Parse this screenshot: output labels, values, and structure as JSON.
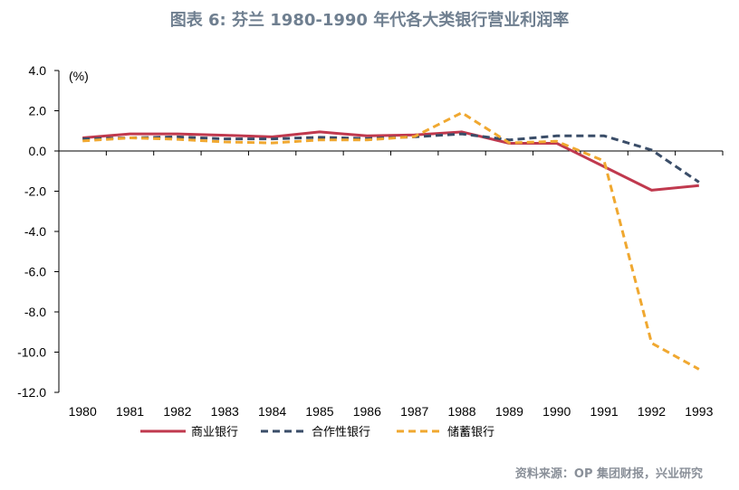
{
  "title": "图表 6: 芬兰 1980-1990 年代各大类银行营业利润率",
  "source": "资料来源：OP 集团财报，兴业研究",
  "chart_data": {
    "type": "line",
    "unit_label": "(%)",
    "categories": [
      "1980",
      "1981",
      "1982",
      "1983",
      "1984",
      "1985",
      "1986",
      "1987",
      "1988",
      "1989",
      "1990",
      "1991",
      "1992",
      "1993"
    ],
    "ylim": [
      -12.0,
      4.0
    ],
    "yticks": [
      "4.0",
      "2.0",
      "0.0",
      "-2.0",
      "-4.0",
      "-6.0",
      "-8.0",
      "-10.0",
      "-12.0"
    ],
    "grid": false,
    "legend_position": "bottom",
    "series": [
      {
        "name": "商业银行",
        "color": "#c0394e",
        "style": "solid",
        "values": [
          0.65,
          0.85,
          0.85,
          0.78,
          0.7,
          0.95,
          0.75,
          0.8,
          0.95,
          0.38,
          0.38,
          -0.78,
          -1.95,
          -1.72
        ]
      },
      {
        "name": "合作性银行",
        "color": "#3a4d68",
        "style": "dashed",
        "values": [
          0.6,
          0.65,
          0.7,
          0.6,
          0.6,
          0.68,
          0.62,
          0.7,
          0.85,
          0.55,
          0.75,
          0.75,
          0.05,
          -1.55
        ]
      },
      {
        "name": "储蓄银行",
        "color": "#f0a830",
        "style": "dashed",
        "values": [
          0.5,
          0.65,
          0.58,
          0.45,
          0.4,
          0.55,
          0.55,
          0.72,
          1.9,
          0.4,
          0.48,
          -0.5,
          -9.55,
          -10.85
        ]
      }
    ]
  }
}
